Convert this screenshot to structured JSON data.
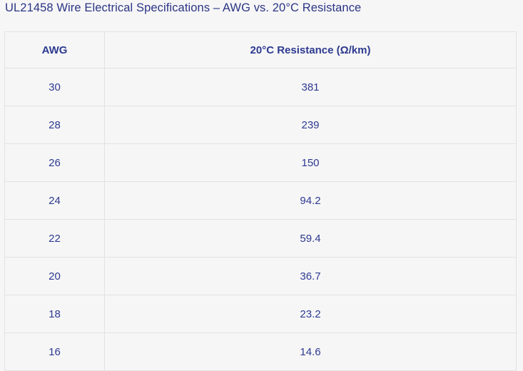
{
  "page": {
    "title": "UL21458 Wire Electrical Specifications – AWG vs. 20°C Resistance"
  },
  "table": {
    "columns": [
      "AWG",
      "20°C Resistance (Ω/km)"
    ],
    "rows": [
      [
        "30",
        "381"
      ],
      [
        "28",
        "239"
      ],
      [
        "26",
        "150"
      ],
      [
        "24",
        "94.2"
      ],
      [
        "22",
        "59.4"
      ],
      [
        "20",
        "36.7"
      ],
      [
        "18",
        "23.2"
      ],
      [
        "16",
        "14.6"
      ]
    ]
  },
  "chart_data": {
    "type": "table",
    "title": "UL21458 Wire Electrical Specifications – AWG vs. 20°C Resistance",
    "columns": [
      "AWG",
      "20°C Resistance (Ω/km)"
    ],
    "categories": [
      30,
      28,
      26,
      24,
      22,
      20,
      18,
      16
    ],
    "values": [
      381,
      239,
      150,
      94.2,
      59.4,
      36.7,
      23.2,
      14.6
    ],
    "xlabel": "AWG",
    "ylabel": "20°C Resistance (Ω/km)",
    "grid": true,
    "legend": false
  },
  "colors": {
    "title_text": "#2b3584",
    "cell_text": "#2d3a8f",
    "border": "#e2e2e3",
    "background": "#f6f6f7"
  }
}
